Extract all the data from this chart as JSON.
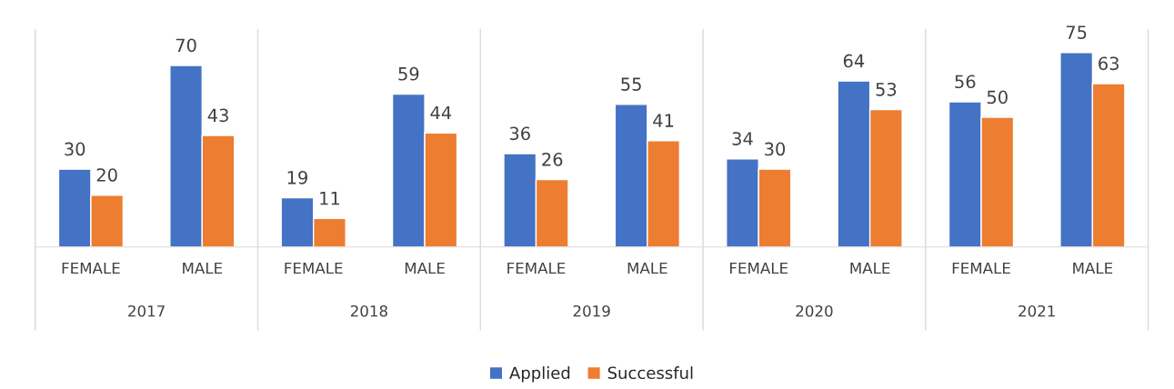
{
  "chart_data": {
    "type": "bar",
    "categories": [
      "FEMALE",
      "MALE",
      "FEMALE",
      "MALE",
      "FEMALE",
      "MALE",
      "FEMALE",
      "MALE",
      "FEMALE",
      "MALE"
    ],
    "annotations": [
      "2017",
      "2018",
      "2019",
      "2020",
      "2021"
    ],
    "series": [
      {
        "name": "Applied",
        "color": "#4472c4",
        "values": [
          30,
          70,
          19,
          59,
          36,
          55,
          34,
          64,
          56,
          75
        ]
      },
      {
        "name": "Successful",
        "color": "#ed7d31",
        "values": [
          20,
          43,
          11,
          44,
          26,
          41,
          30,
          53,
          50,
          63
        ]
      }
    ],
    "data_labels": true,
    "grid": false,
    "legend": "bottom"
  }
}
